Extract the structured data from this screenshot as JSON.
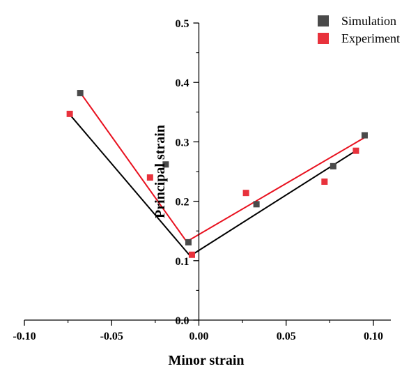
{
  "chart_data": {
    "type": "scatter",
    "title": "",
    "xlabel": "Minor strain",
    "ylabel": "Principal strain",
    "xlim": [
      -0.1,
      0.11
    ],
    "ylim": [
      0.0,
      0.5
    ],
    "x_ticks": [
      -0.1,
      -0.05,
      0.0,
      0.05,
      0.1
    ],
    "x_tick_labels": [
      "-0.10",
      "-0.05",
      "0.00",
      "0.05",
      "0.10"
    ],
    "y_ticks": [
      0.0,
      0.1,
      0.2,
      0.3,
      0.4,
      0.5
    ],
    "y_tick_labels": [
      "0.0",
      "0.1",
      "0.2",
      "0.3",
      "0.4",
      "0.5"
    ],
    "grid": false,
    "legend_position": "top-right",
    "series": [
      {
        "name": "Simulation",
        "color": "#4a4a4a",
        "line_color": "#000000",
        "points": [
          {
            "x": -0.068,
            "y": 0.382
          },
          {
            "x": -0.019,
            "y": 0.262
          },
          {
            "x": -0.006,
            "y": 0.131
          },
          {
            "x": 0.033,
            "y": 0.195
          },
          {
            "x": 0.077,
            "y": 0.259
          },
          {
            "x": 0.095,
            "y": 0.311
          }
        ],
        "fit_lines": [
          [
            {
              "x": -0.074,
              "y": 0.346
            },
            {
              "x": -0.005,
              "y": 0.108
            }
          ],
          [
            {
              "x": -0.005,
              "y": 0.108
            },
            {
              "x": 0.091,
              "y": 0.287
            }
          ]
        ]
      },
      {
        "name": "Experiment",
        "color": "#e8323c",
        "line_color": "#e8101e",
        "points": [
          {
            "x": -0.074,
            "y": 0.347
          },
          {
            "x": -0.028,
            "y": 0.24
          },
          {
            "x": -0.004,
            "y": 0.11
          },
          {
            "x": 0.027,
            "y": 0.214
          },
          {
            "x": 0.072,
            "y": 0.233
          },
          {
            "x": 0.09,
            "y": 0.285
          }
        ],
        "fit_lines": [
          [
            {
              "x": -0.068,
              "y": 0.383
            },
            {
              "x": -0.007,
              "y": 0.132
            }
          ],
          [
            {
              "x": -0.007,
              "y": 0.132
            },
            {
              "x": 0.096,
              "y": 0.309
            }
          ]
        ]
      }
    ]
  }
}
